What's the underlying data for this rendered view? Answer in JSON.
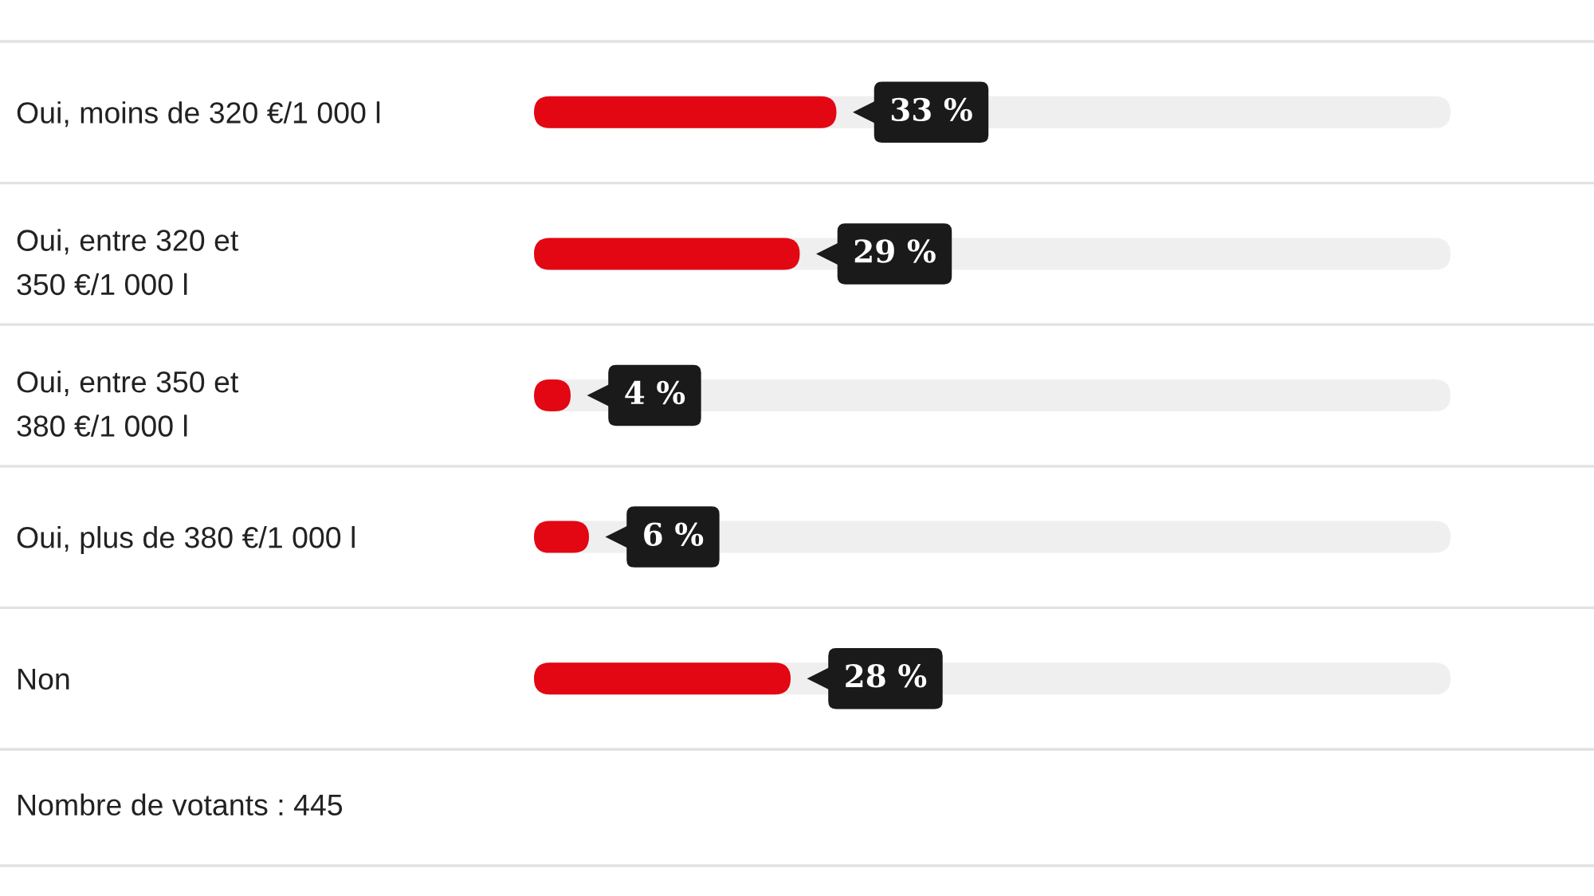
{
  "chart_data": {
    "type": "bar",
    "orientation": "horizontal",
    "categories": [
      "Oui, moins de 320 €/1 000 l",
      "Oui, entre 320 et\n350 €/1 000 l",
      "Oui, entre 350 et\n380 €/1 000 l",
      "Oui, plus de 380 €/1 000 l",
      "Non"
    ],
    "values": [
      33,
      29,
      4,
      6,
      28
    ],
    "color": "#e30613",
    "tick_labels": "y",
    "value_labels": [
      "33 %",
      "29 %",
      "4 %",
      "6 %",
      "28 %"
    ],
    "annotations": [
      "Nombre de votants : 445"
    ]
  }
}
